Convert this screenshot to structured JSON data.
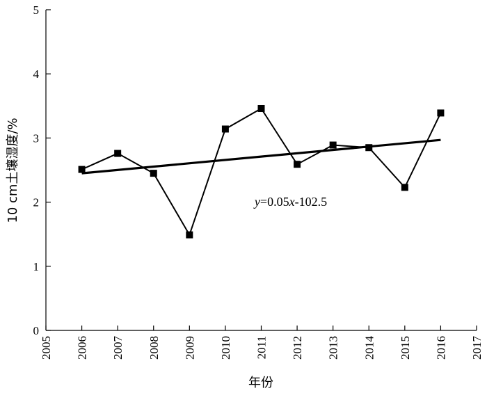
{
  "chart_data": {
    "type": "line",
    "xlabel": "年份",
    "ylabel": "10 cm土壤湿度/%",
    "xlim": [
      2005,
      2017
    ],
    "ylim": [
      0,
      5
    ],
    "xticks": [
      2005,
      2006,
      2007,
      2008,
      2009,
      2010,
      2011,
      2012,
      2013,
      2014,
      2015,
      2016,
      2017
    ],
    "yticks": [
      0,
      1,
      2,
      3,
      4,
      5
    ],
    "grid": false,
    "legend": "none",
    "series": [
      {
        "x": [
          2006,
          2007,
          2008,
          2009,
          2010,
          2011,
          2012,
          2013,
          2014,
          2015,
          2016
        ],
        "values": [
          2.51,
          2.76,
          2.45,
          1.49,
          3.14,
          3.46,
          2.59,
          2.89,
          2.85,
          2.23,
          3.39
        ],
        "marker": "square",
        "color": "#000000"
      }
    ],
    "trendline": {
      "equation_var": "y",
      "equation_mid": "=0.05",
      "equation_var2": "x",
      "equation_tail": "-102.5",
      "x": [
        2006,
        2016
      ],
      "values": [
        2.45,
        2.97
      ]
    }
  }
}
